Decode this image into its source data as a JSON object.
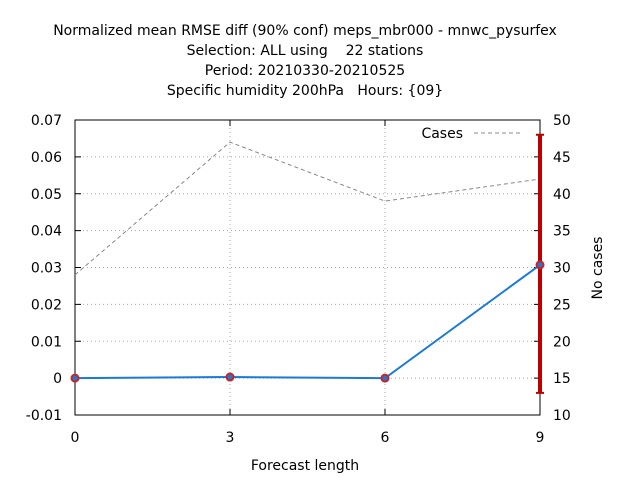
{
  "chart_data": {
    "type": "line",
    "title_lines": [
      "Normalized mean RMSE diff (90% conf) meps_mbr000 - mnwc_pysurfex",
      "Selection: ALL using    22 stations",
      "Period: 20210330-20210525",
      "Specific humidity 200hPa   Hours: {09}"
    ],
    "xlabel": "Forecast length",
    "ylabel_right": "No cases",
    "x": [
      0,
      3,
      6,
      9
    ],
    "xlim": [
      0,
      9
    ],
    "ylim": [
      -0.01,
      0.07
    ],
    "y2lim": [
      10,
      50
    ],
    "x_ticks": [
      "0",
      "3",
      "6",
      "9"
    ],
    "y_ticks": [
      "-0.01",
      "0",
      "0.01",
      "0.02",
      "0.03",
      "0.04",
      "0.05",
      "0.06",
      "0.07"
    ],
    "y2_ticks": [
      "10",
      "15",
      "20",
      "25",
      "30",
      "35",
      "40",
      "45",
      "50"
    ],
    "grid": true,
    "legend_position": "top-right",
    "series": [
      {
        "role": "rmse_diff",
        "color": "#1a7ad6",
        "marker_color": "#cc2222",
        "values": [
          0.0,
          0.0003,
          0.0,
          0.0307
        ]
      },
      {
        "name": "Cases",
        "axis": "right",
        "color": "#888888",
        "style": "dashed",
        "values": [
          29,
          47,
          39,
          42
        ]
      }
    ],
    "confidence_intervals": [
      {
        "x": 9,
        "low": -0.004,
        "high": 0.066
      }
    ],
    "confidence_color": "#bb0000"
  }
}
